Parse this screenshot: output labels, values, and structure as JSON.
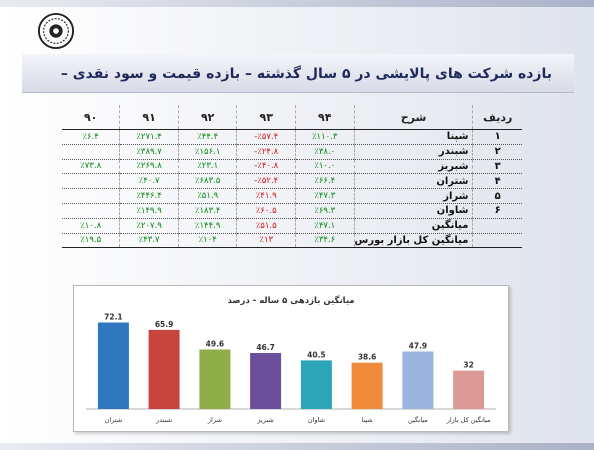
{
  "slide": {
    "title": "بازده شرکت های پالایشی در ۵ سال گذشته – بازده قیمت و سود نقدی –"
  },
  "table": {
    "headers": [
      "ردیف",
      "شرح",
      "۹۴",
      "۹۳",
      "۹۲",
      "۹۱",
      "۹۰"
    ],
    "rows": [
      {
        "idx": "۱",
        "name": "شپنا",
        "cells": [
          {
            "v": "٪۱۱۰.۳",
            "s": "pos"
          },
          {
            "v": "٪۵۷.۴-",
            "s": "neg"
          },
          {
            "v": "٪۴۴.۴",
            "s": "pos"
          },
          {
            "v": "٪۲۷۱.۴",
            "s": "pos"
          },
          {
            "v": "٪۶.۴",
            "s": "pos"
          }
        ]
      },
      {
        "idx": "۲",
        "name": "شبندر",
        "cells": [
          {
            "v": "٪۳۸.۰",
            "s": "pos"
          },
          {
            "v": "٪۲۴.۸-",
            "s": "neg"
          },
          {
            "v": "٪۱۵۶.۱",
            "s": "pos"
          },
          {
            "v": "٪۳۸۹.۷",
            "s": "pos"
          },
          {
            "v": "",
            "s": ""
          }
        ]
      },
      {
        "idx": "۳",
        "name": "شبریز",
        "cells": [
          {
            "v": "٪۱۰.۰",
            "s": "pos"
          },
          {
            "v": "٪۴۰.۸-",
            "s": "neg"
          },
          {
            "v": "٪۲۳.۱",
            "s": "pos"
          },
          {
            "v": "٪۲۶۹.۸",
            "s": "pos"
          },
          {
            "v": "٪۷۳.۸",
            "s": "pos"
          }
        ]
      },
      {
        "idx": "۴",
        "name": "شتران",
        "cells": [
          {
            "v": "٪۶۶.۴",
            "s": "pos"
          },
          {
            "v": "٪۵۲.۴-",
            "s": "neg"
          },
          {
            "v": "٪۶۸۳.۵",
            "s": "pos"
          },
          {
            "v": "٪۴۰.۷",
            "s": "pos"
          },
          {
            "v": "",
            "s": ""
          }
        ]
      },
      {
        "idx": "۵",
        "name": "شراز",
        "cells": [
          {
            "v": "٪۴۷.۳",
            "s": "pos"
          },
          {
            "v": "٪۴۱.۹",
            "s": "neg"
          },
          {
            "v": "٪۵۱.۹",
            "s": "pos"
          },
          {
            "v": "٪۴۴۶.۴",
            "s": "pos"
          },
          {
            "v": "",
            "s": ""
          }
        ]
      },
      {
        "idx": "۶",
        "name": "شاوان",
        "cells": [
          {
            "v": "٪۶۹.۳",
            "s": "pos"
          },
          {
            "v": "٪۶۰.۵",
            "s": "neg"
          },
          {
            "v": "٪۱۸۳.۴",
            "s": "pos"
          },
          {
            "v": "٪۱۴۹.۹",
            "s": "pos"
          },
          {
            "v": "",
            "s": ""
          }
        ]
      },
      {
        "idx": "",
        "name": "میانگین",
        "cells": [
          {
            "v": "٪۴۷.۱",
            "s": "pos"
          },
          {
            "v": "٪۵۱.۵",
            "s": "neg"
          },
          {
            "v": "٪۱۴۴.۹",
            "s": "pos"
          },
          {
            "v": "٪۲۰۷.۹",
            "s": "pos"
          },
          {
            "v": "٪۱۰.۸",
            "s": "pos"
          }
        ]
      },
      {
        "idx": "",
        "name": "میانگین کل بازار بورس",
        "cells": [
          {
            "v": "٪۳۴.۶",
            "s": "pos"
          },
          {
            "v": "٪۱۳",
            "s": "neg"
          },
          {
            "v": "٪۱۰۴",
            "s": "pos"
          },
          {
            "v": "٪۴۳.۷",
            "s": "pos"
          },
          {
            "v": "٪۱۹.۵",
            "s": "pos"
          }
        ]
      }
    ]
  },
  "chart_data": {
    "type": "bar",
    "title": "میانگین بازدهی ۵ ساله - درصد",
    "categories": [
      "شتران",
      "شبندر",
      "شراز",
      "شبریز",
      "شاوان",
      "شپنا",
      "میانگین",
      "میانگین کل بازار"
    ],
    "values": [
      72.1,
      65.9,
      49.6,
      46.7,
      40.5,
      38.6,
      47.9,
      32
    ],
    "value_labels": [
      "72.1",
      "65.9",
      "49.6",
      "46.7",
      "40.5",
      "38.6",
      "47.9",
      "32"
    ],
    "colors": [
      "#2e76bd",
      "#c8443f",
      "#8fae4a",
      "#6c4f9a",
      "#2ea4b8",
      "#ef8a3a",
      "#9bb4dd",
      "#dc9a96"
    ],
    "ylim": [
      0,
      80
    ],
    "grid": false,
    "legend": "none"
  }
}
